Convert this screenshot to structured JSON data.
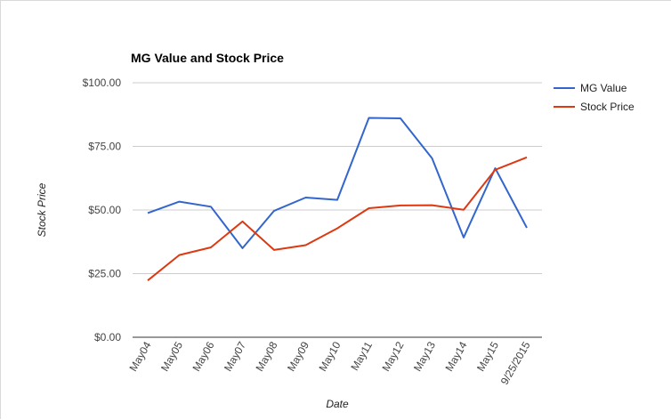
{
  "chart_data": {
    "type": "line",
    "title": "MG Value and Stock Price",
    "xlabel": "Date",
    "ylabel": "Stock Price",
    "categories": [
      "May04",
      "May05",
      "May06",
      "May07",
      "May08",
      "May09",
      "May10",
      "May11",
      "May12",
      "May13",
      "May14",
      "May15",
      "9/25/2015"
    ],
    "ylim": [
      0,
      100
    ],
    "yticks": [
      0,
      25,
      50,
      75,
      100
    ],
    "ytick_labels": [
      "$0.00",
      "$25.00",
      "$50.00",
      "$75.00",
      "$100.00"
    ],
    "grid": true,
    "legend_position": "right",
    "series": [
      {
        "name": "MG Value",
        "color": "#3366cc",
        "values": [
          48.8,
          53.3,
          51.3,
          35.0,
          49.7,
          54.9,
          54.0,
          86.2,
          86.0,
          70.3,
          39.2,
          66.4,
          43.0
        ]
      },
      {
        "name": "Stock Price",
        "color": "#dc3912",
        "values": [
          22.3,
          32.3,
          35.3,
          45.5,
          34.3,
          36.2,
          42.8,
          50.7,
          51.8,
          51.9,
          50.1,
          65.8,
          70.7
        ]
      }
    ]
  }
}
